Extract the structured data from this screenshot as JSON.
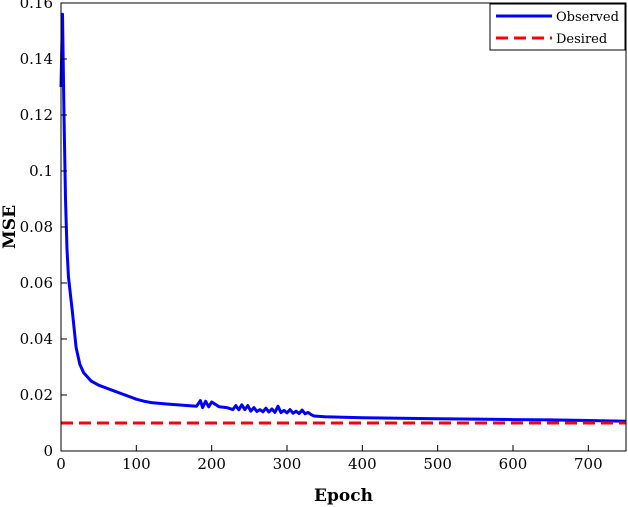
{
  "chart_data": {
    "type": "line",
    "title": "",
    "xlabel": "Epoch",
    "ylabel": "MSE",
    "xlim": [
      0,
      750
    ],
    "ylim": [
      0,
      0.16
    ],
    "xticks": [
      0,
      100,
      200,
      300,
      400,
      500,
      600,
      700
    ],
    "yticks": [
      0,
      0.02,
      0.04,
      0.06,
      0.08,
      0.1,
      0.12,
      0.14,
      0.16
    ],
    "xtick_labels": [
      "0",
      "100",
      "200",
      "300",
      "400",
      "500",
      "600",
      "700"
    ],
    "ytick_labels": [
      "0",
      "0.02",
      "0.04",
      "0.06",
      "0.08",
      "0.1",
      "0.12",
      "0.14",
      "0.16"
    ],
    "grid": false,
    "legend_position": "top-right",
    "series": [
      {
        "name": "Observed",
        "color": "#0000ff",
        "style": "solid",
        "x": [
          0,
          2,
          4,
          6,
          8,
          10,
          15,
          20,
          25,
          30,
          40,
          50,
          60,
          70,
          80,
          90,
          100,
          110,
          120,
          140,
          160,
          180,
          185,
          188,
          192,
          196,
          200,
          210,
          220,
          228,
          232,
          236,
          240,
          244,
          248,
          252,
          256,
          260,
          264,
          268,
          272,
          276,
          280,
          284,
          288,
          292,
          296,
          300,
          304,
          308,
          312,
          316,
          320,
          324,
          328,
          332,
          336,
          350,
          400,
          450,
          500,
          550,
          600,
          650,
          700,
          750
        ],
        "y": [
          0.13,
          0.156,
          0.12,
          0.09,
          0.072,
          0.062,
          0.05,
          0.037,
          0.031,
          0.028,
          0.025,
          0.0235,
          0.0225,
          0.0215,
          0.0205,
          0.0195,
          0.0185,
          0.0178,
          0.0173,
          0.0168,
          0.0164,
          0.016,
          0.018,
          0.0155,
          0.0178,
          0.0158,
          0.0175,
          0.0158,
          0.0155,
          0.0148,
          0.0162,
          0.0147,
          0.0165,
          0.0148,
          0.0162,
          0.0142,
          0.0155,
          0.0141,
          0.0148,
          0.014,
          0.0153,
          0.0139,
          0.015,
          0.0138,
          0.016,
          0.0137,
          0.0145,
          0.0136,
          0.0148,
          0.0135,
          0.0142,
          0.0134,
          0.0146,
          0.0133,
          0.0138,
          0.013,
          0.0125,
          0.0122,
          0.0119,
          0.0117,
          0.0115,
          0.0114,
          0.0112,
          0.0111,
          0.0109,
          0.0106
        ]
      },
      {
        "name": "Desired",
        "color": "#ff0000",
        "style": "dashed",
        "x": [
          0,
          750
        ],
        "y": [
          0.01,
          0.01
        ]
      }
    ]
  }
}
